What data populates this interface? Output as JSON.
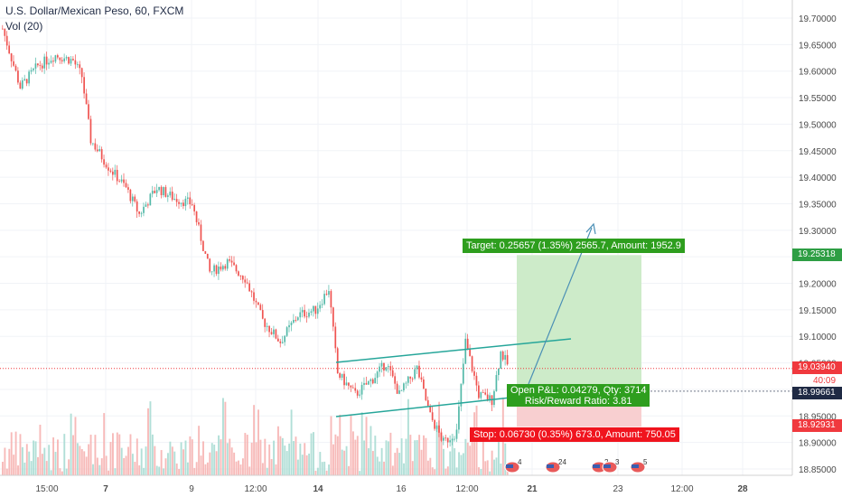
{
  "header": {
    "title": "U.S. Dollar/Mexican Peso, 60, FXCM",
    "volume_label": "Vol (20)"
  },
  "price_tags": {
    "target": {
      "value": "19.25318",
      "color": "#2e9e44"
    },
    "current": {
      "value": "19.03940",
      "countdown": "40:09",
      "color": "#f0393e"
    },
    "entry": {
      "value": "18.99661",
      "color": "#1f2a44"
    },
    "stop": {
      "value": "18.92931",
      "color": "#f0393e"
    }
  },
  "position": {
    "target_label": "Target: 0.25657 (1.35%) 2565.7, Amount: 1952.9",
    "open_pnl_label": "Open P&L: 0.04279, Qty: 3714",
    "risk_reward_label": "Risk/Reward Ratio: 3.81",
    "stop_label": "Stop: 0.06730 (0.35%) 673.0, Amount: 750.05",
    "entry": 18.99661,
    "target": 19.25318,
    "stop": 18.92931
  },
  "events": [
    {
      "label": "4"
    },
    {
      "label": "24"
    },
    {
      "label": "2"
    },
    {
      "label": "3"
    },
    {
      "label": "5"
    }
  ],
  "colors": {
    "up": "#53b9a8",
    "down": "#ef5350",
    "trendline": "#26a69a",
    "target_zone": "#cdebc9",
    "stop_zone": "#f8cfd0",
    "axis_text": "#4a4a4a"
  },
  "chart_data": {
    "type": "candlestick",
    "symbol": "USD/MXN",
    "timeframe": "60",
    "ylim": [
      18.84,
      19.73
    ],
    "y_ticks": [
      "19.70000",
      "19.65000",
      "19.60000",
      "19.55000",
      "19.50000",
      "19.45000",
      "19.40000",
      "19.35000",
      "19.30000",
      "19.25000",
      "19.20000",
      "19.15000",
      "19.10000",
      "19.05000",
      "19.00000",
      "18.95000",
      "18.90000",
      "18.85000"
    ],
    "x_ticks": [
      "15:00",
      "7",
      "9",
      "12:00",
      "14",
      "16",
      "12:00",
      "21",
      "23",
      "12:00",
      "28"
    ],
    "price_path": [
      {
        "t": 0,
        "p": 19.68
      },
      {
        "t": 4,
        "p": 19.57
      },
      {
        "t": 8,
        "p": 19.61
      },
      {
        "t": 12,
        "p": 19.63
      },
      {
        "t": 16,
        "p": 19.62
      },
      {
        "t": 18,
        "p": 19.59
      },
      {
        "t": 20,
        "p": 19.47
      },
      {
        "t": 24,
        "p": 19.42
      },
      {
        "t": 28,
        "p": 19.38
      },
      {
        "t": 31,
        "p": 19.33
      },
      {
        "t": 35,
        "p": 19.38
      },
      {
        "t": 39,
        "p": 19.36
      },
      {
        "t": 43,
        "p": 19.35
      },
      {
        "t": 47,
        "p": 19.22
      },
      {
        "t": 51,
        "p": 19.24
      },
      {
        "t": 55,
        "p": 19.21
      },
      {
        "t": 59,
        "p": 19.13
      },
      {
        "t": 63,
        "p": 19.09
      },
      {
        "t": 67,
        "p": 19.14
      },
      {
        "t": 71,
        "p": 19.15
      },
      {
        "t": 74,
        "p": 19.19
      },
      {
        "t": 76,
        "p": 19.03
      },
      {
        "t": 80,
        "p": 18.99
      },
      {
        "t": 84,
        "p": 19.02
      },
      {
        "t": 87,
        "p": 19.05
      },
      {
        "t": 90,
        "p": 18.99
      },
      {
        "t": 94,
        "p": 19.04
      },
      {
        "t": 97,
        "p": 18.95
      },
      {
        "t": 100,
        "p": 18.9
      },
      {
        "t": 103,
        "p": 18.92
      },
      {
        "t": 105,
        "p": 19.09
      },
      {
        "t": 108,
        "p": 18.99
      },
      {
        "t": 111,
        "p": 18.98
      },
      {
        "t": 113,
        "p": 19.07
      },
      {
        "t": 115,
        "p": 19.04
      }
    ]
  }
}
